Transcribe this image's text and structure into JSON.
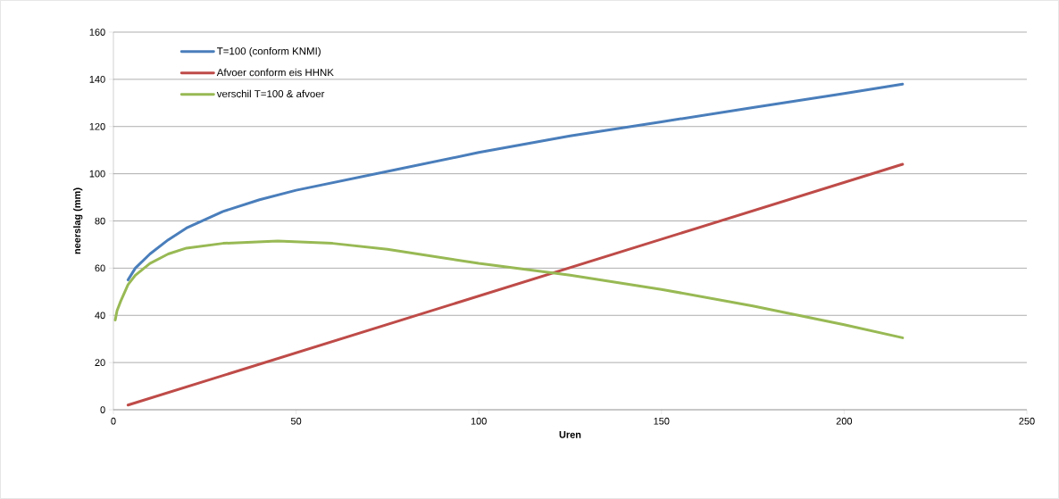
{
  "chart_data": {
    "type": "line",
    "xlabel": "Uren",
    "ylabel": "neerslag (mm)",
    "xlim": [
      0,
      250
    ],
    "xticks": [
      0,
      50,
      100,
      150,
      200,
      250
    ],
    "ylim": [
      0,
      160
    ],
    "yticks": [
      0,
      20,
      40,
      60,
      80,
      100,
      120,
      140,
      160
    ],
    "grid": "y",
    "legend": "top left",
    "marker": "none",
    "line_style": "solid",
    "series": [
      {
        "name": "T=100 (conform KNMI)",
        "color": "#4a7ebb",
        "x": [
          4,
          6,
          10,
          15,
          20,
          30,
          40,
          50,
          75,
          100,
          125,
          150,
          175,
          200,
          216
        ],
        "values": [
          55,
          60,
          66,
          72,
          77,
          84,
          89,
          93,
          101,
          109,
          116,
          122,
          128,
          134,
          138
        ]
      },
      {
        "name": "Afvoer conform eis HHNK",
        "color": "#be4b48",
        "x": [
          4,
          216
        ],
        "values": [
          2,
          104
        ]
      },
      {
        "name": "verschil T=100 & afvoer",
        "color": "#98b954",
        "x": [
          0.5,
          1,
          2,
          4,
          6,
          10,
          15,
          20,
          30,
          45,
          60,
          75,
          100,
          125,
          150,
          175,
          200,
          216
        ],
        "values": [
          38,
          42,
          46,
          53,
          57,
          62,
          66,
          68.5,
          70.5,
          71.5,
          70.5,
          68,
          62,
          57,
          51,
          44,
          36,
          30.5
        ]
      }
    ]
  }
}
